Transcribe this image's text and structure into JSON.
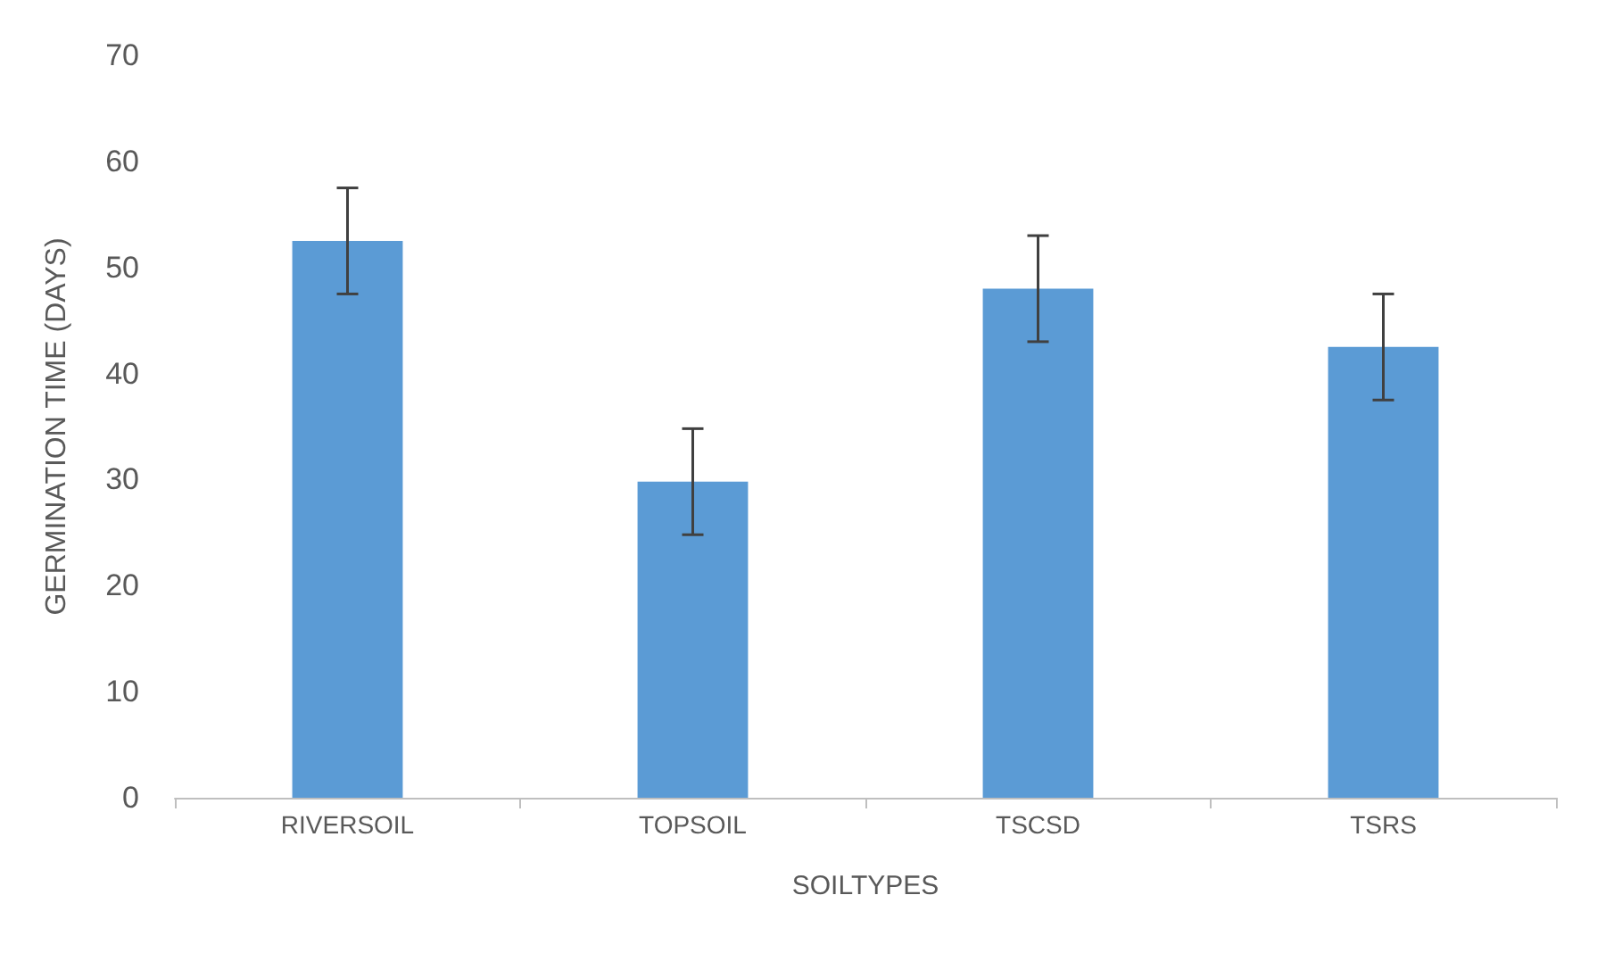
{
  "chart_data": {
    "type": "bar",
    "xlabel": "SOILTYPES",
    "ylabel": "GERMINATION TIME (DAYS)",
    "categories": [
      "RIVERSOIL",
      "TOPSOIL",
      "TSCSD",
      "TSRS"
    ],
    "values": [
      52.5,
      29.8,
      48,
      42.5
    ],
    "errors": [
      5,
      5,
      5,
      5
    ],
    "color": "#5b9bd5",
    "ylim": [
      0,
      70
    ],
    "yticks": [
      0,
      10,
      20,
      30,
      40,
      50,
      60,
      70
    ]
  }
}
